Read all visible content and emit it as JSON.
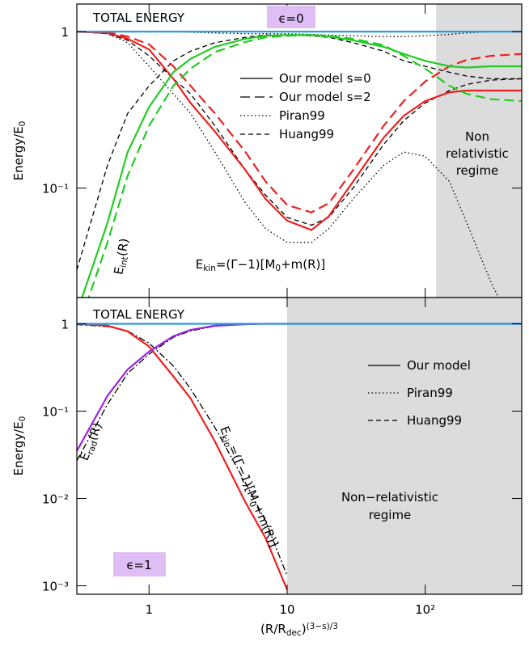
{
  "chart_data": [
    {
      "type": "line",
      "log_x": true,
      "log_y": true,
      "xlim": [
        0.3,
        500
      ],
      "ylim": [
        0.02,
        1.5
      ],
      "xticks": [
        1,
        10,
        100
      ],
      "yticks": [
        {
          "value": 0.1,
          "label": "10⁻¹"
        },
        1
      ],
      "ylabel": {
        "parts": [
          {
            "text": "Energy/E"
          },
          {
            "text": "0",
            "sub": true
          }
        ]
      },
      "shade": {
        "x": [
          120,
          500
        ],
        "color": "#dcdcdc"
      },
      "x": [
        0.3,
        0.5,
        0.7,
        1,
        1.5,
        2,
        3,
        5,
        7,
        10,
        15,
        20,
        30,
        50,
        70,
        100,
        150,
        200,
        300,
        500
      ],
      "series": [
        {
          "color": "#000000",
          "dash": "dotted",
          "values": [
            1,
            1,
            1,
            1,
            1,
            0.99,
            0.98,
            0.97,
            0.97,
            0.97,
            0.96,
            0.95,
            0.94,
            0.93,
            0.93,
            0.94,
            0.96,
            0.98,
            1,
            1
          ]
        },
        {
          "color": "#000000",
          "dash": "dotted",
          "values": [
            1,
            0.97,
            0.85,
            0.6,
            0.4,
            0.3,
            0.17,
            0.08,
            0.055,
            0.045,
            0.045,
            0.055,
            0.085,
            0.14,
            0.17,
            0.16,
            0.11,
            0.06,
            0.025,
            0.01
          ]
        },
        {
          "color": "#000000",
          "dash": "dashed",
          "values": [
            1,
            0.97,
            0.88,
            0.7,
            0.5,
            0.4,
            0.25,
            0.13,
            0.09,
            0.065,
            0.058,
            0.065,
            0.1,
            0.19,
            0.27,
            0.35,
            0.42,
            0.46,
            0.49,
            0.5
          ]
        },
        {
          "color": "#000000",
          "dash": "dashed",
          "values": [
            0.03,
            0.14,
            0.3,
            0.45,
            0.65,
            0.75,
            0.85,
            0.92,
            0.95,
            0.95,
            0.94,
            0.92,
            0.85,
            0.75,
            0.65,
            0.6,
            0.55,
            0.52,
            0.5,
            0.5
          ]
        },
        {
          "color": "#ee2020",
          "dash": "solid",
          "values": [
            1,
            0.98,
            0.9,
            0.77,
            0.5,
            0.35,
            0.23,
            0.13,
            0.085,
            0.062,
            0.054,
            0.066,
            0.11,
            0.21,
            0.29,
            0.36,
            0.41,
            0.42,
            0.42,
            0.42
          ]
        },
        {
          "color": "#ee2020",
          "dash": "longdash",
          "values": [
            1,
            0.99,
            0.93,
            0.83,
            0.6,
            0.45,
            0.3,
            0.17,
            0.11,
            0.078,
            0.07,
            0.08,
            0.13,
            0.25,
            0.36,
            0.48,
            0.6,
            0.66,
            0.7,
            0.72
          ]
        },
        {
          "color": "#22cc22",
          "dash": "solid",
          "values": [
            0.016,
            0.06,
            0.17,
            0.33,
            0.55,
            0.67,
            0.8,
            0.9,
            0.94,
            0.95,
            0.95,
            0.93,
            0.88,
            0.8,
            0.72,
            0.65,
            0.6,
            0.59,
            0.6,
            0.6
          ]
        },
        {
          "color": "#22cc22",
          "dash": "longdash",
          "values": [
            0.012,
            0.045,
            0.12,
            0.25,
            0.45,
            0.58,
            0.74,
            0.86,
            0.92,
            0.94,
            0.95,
            0.94,
            0.9,
            0.82,
            0.7,
            0.58,
            0.45,
            0.4,
            0.37,
            0.36
          ]
        },
        {
          "color": "#2a9be0",
          "dash": "solid",
          "values": [
            1,
            1,
            1,
            1,
            1,
            1,
            1,
            1,
            1,
            1,
            1,
            1,
            1,
            1,
            1,
            1,
            1,
            1,
            1,
            1
          ]
        }
      ],
      "legend": {
        "items": [
          {
            "name": "Our model s=0",
            "dash": "solid"
          },
          {
            "name": "Our model s=2",
            "dash": "longdash"
          },
          {
            "name": "Piran99",
            "dash": "dotted"
          },
          {
            "name": "Huang99",
            "dash": "dashed"
          }
        ]
      },
      "annotations": [
        {
          "text": "TOTAL ENERGY"
        },
        {
          "text": "ϵ=0"
        },
        {
          "lines": [
            "Non",
            "relativistic",
            "regime"
          ]
        },
        {
          "parts": [
            {
              "text": "E"
            },
            {
              "text": "int",
              "sub": true
            },
            {
              "text": "(R)"
            }
          ]
        },
        {
          "parts": [
            {
              "text": "E"
            },
            {
              "text": "kin",
              "sub": true
            },
            {
              "text": "=(Γ−1)[M"
            },
            {
              "text": "0",
              "sub": true
            },
            {
              "text": "+m(R)]"
            }
          ]
        }
      ]
    },
    {
      "type": "line",
      "log_x": true,
      "log_y": true,
      "xlim": [
        0.3,
        500
      ],
      "ylim": [
        0.0008,
        2
      ],
      "xticks": [
        1,
        10,
        {
          "value": 100,
          "label": "10²"
        }
      ],
      "yticks": [
        {
          "value": 0.001,
          "label": "10⁻³"
        },
        {
          "value": 0.01,
          "label": "10⁻²"
        },
        {
          "value": 0.1,
          "label": "10⁻¹"
        },
        1
      ],
      "xlabel": {
        "parts": [
          {
            "text": "(R/R"
          },
          {
            "text": "dec",
            "sub": true
          },
          {
            "text": ")"
          },
          {
            "text": "(3−s)/3",
            "sup": true
          }
        ]
      },
      "ylabel": {
        "parts": [
          {
            "text": "Energy/E"
          },
          {
            "text": "0",
            "sub": true
          }
        ]
      },
      "shade": {
        "x": [
          10,
          500
        ],
        "color": "#dcdcdc"
      },
      "x": [
        0.3,
        0.5,
        0.7,
        1,
        1.5,
        2,
        3,
        5,
        7,
        10,
        15,
        20,
        30,
        50,
        70,
        100,
        150,
        200,
        300,
        500
      ],
      "series": [
        {
          "color": "#000000",
          "dash": "dashdot",
          "values": [
            0.027,
            0.12,
            0.27,
            0.45,
            0.7,
            0.83,
            0.94,
            0.99,
            1,
            1,
            1,
            1,
            1,
            1,
            1,
            1,
            1,
            1,
            1,
            1
          ]
        },
        {
          "color": "#000000",
          "dash": "dashdot",
          "values": [
            0.98,
            0.93,
            0.83,
            0.6,
            0.33,
            0.18,
            0.065,
            0.015,
            0.0055,
            0.0013,
            null,
            null,
            null,
            null,
            null,
            null,
            null,
            null,
            null,
            null
          ]
        },
        {
          "color": "#ee2020",
          "dash": "solid",
          "values": [
            1,
            0.95,
            0.82,
            0.55,
            0.25,
            0.14,
            0.045,
            0.009,
            0.0035,
            0.0009,
            null,
            null,
            null,
            null,
            null,
            null,
            null,
            null,
            null,
            null
          ]
        },
        {
          "color": "#9922dd",
          "dash": "solid",
          "values": [
            0.035,
            0.15,
            0.3,
            0.48,
            0.72,
            0.85,
            0.95,
            0.99,
            1,
            1,
            1,
            1,
            1,
            1,
            1,
            1,
            1,
            1,
            1,
            1
          ]
        },
        {
          "color": "#2a9be0",
          "dash": "solid",
          "values": [
            1,
            1,
            1,
            1,
            1,
            1,
            1,
            1,
            1,
            1,
            1,
            1,
            1,
            1,
            1,
            1,
            1,
            1,
            1,
            1
          ]
        }
      ],
      "legend": {
        "items": [
          {
            "name": "Our model",
            "dash": "solid"
          },
          {
            "name": "Piran99",
            "dash": "dotted"
          },
          {
            "name": "Huang99",
            "dash": "dashed"
          }
        ]
      },
      "annotations": [
        {
          "text": "TOTAL ENERGY"
        },
        {
          "text": "ϵ=1"
        },
        {
          "lines": [
            "Non−relativistic",
            "regime"
          ]
        },
        {
          "parts": [
            {
              "text": "E"
            },
            {
              "text": "rad",
              "sub": true
            },
            {
              "text": "(R)"
            }
          ]
        },
        {
          "parts": [
            {
              "text": "E"
            },
            {
              "text": "kin",
              "sub": true
            },
            {
              "text": "=(Γ−1)[M"
            },
            {
              "text": "0",
              "sub": true
            },
            {
              "text": "+m(R)]"
            }
          ]
        }
      ]
    }
  ]
}
